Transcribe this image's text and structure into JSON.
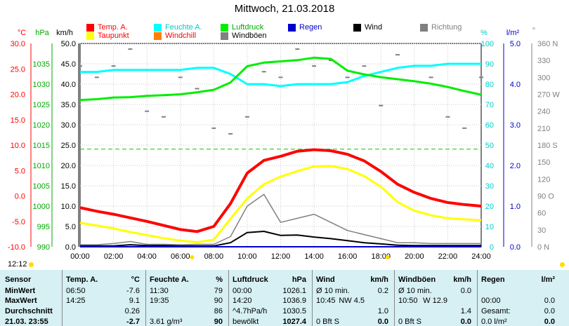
{
  "title": "Mittwoch, 21.03.2018",
  "legend": [
    {
      "label": "Temp. A.",
      "color": "#ff0000",
      "text_color": "#ff0000"
    },
    {
      "label": "Feuchte A.",
      "color": "#00ffff",
      "text_color": "#00cccc"
    },
    {
      "label": "Luftdruck",
      "color": "#00ee00",
      "text_color": "#00aa00"
    },
    {
      "label": "Regen",
      "color": "#0000cc",
      "text_color": "#0000cc"
    },
    {
      "label": "Wind",
      "color": "#000000",
      "text_color": "#000000"
    },
    {
      "label": "Richtung",
      "color": "#808080",
      "text_color": "#808080"
    },
    {
      "label": "Taupunkt",
      "color": "#ffff00",
      "text_color": "#ff0000"
    },
    {
      "label": "Windchill",
      "color": "#ff8000",
      "text_color": "#ff0000"
    },
    {
      "label": "Windböen",
      "color": "#808080",
      "text_color": "#000000"
    }
  ],
  "axis_units": {
    "temp": "°C",
    "pressure": "hPa",
    "wind": "km/h",
    "humidity": "%",
    "rain": "l/m²",
    "direction": "°"
  },
  "axes": {
    "temp_ticks": [
      "30.0",
      "25.0",
      "20.0",
      "15.0",
      "10.0",
      "5.0",
      "0.0",
      "-5.0",
      "-10.0"
    ],
    "pressure_ticks": [
      "1035",
      "1030",
      "1025",
      "1020",
      "1015",
      "1010",
      "1005",
      "1000",
      "995",
      "990"
    ],
    "wind_ticks": [
      "50.0",
      "45.0",
      "40.0",
      "35.0",
      "30.0",
      "25.0",
      "20.0",
      "15.0",
      "10.0",
      "5.0",
      "0.0"
    ],
    "humidity_ticks": [
      "100",
      "90",
      "80",
      "70",
      "60",
      "50",
      "40",
      "30",
      "20",
      "10",
      "0"
    ],
    "rain_ticks": [
      "5.0",
      "4.0",
      "3.0",
      "2.0",
      "1.0",
      "0.0"
    ],
    "direction_ticks": [
      "360 N",
      "330",
      "300",
      "270 W",
      "240",
      "210",
      "180 S",
      "150",
      "120",
      "90 O",
      "60",
      "30",
      "0 N"
    ],
    "time_ticks": [
      "00:00",
      "02:00",
      "04:00",
      "06:00",
      "08:00",
      "10:00",
      "12:00",
      "14:00",
      "16:00",
      "18:00",
      "20:00",
      "22:00",
      "24:00"
    ]
  },
  "chart_data": {
    "type": "line",
    "title": "Mittwoch, 21.03.2018",
    "xlabel": "",
    "x": [
      0,
      1,
      2,
      3,
      4,
      5,
      6,
      7,
      8,
      9,
      10,
      11,
      12,
      13,
      14,
      15,
      16,
      17,
      18,
      19,
      20,
      21,
      22,
      23,
      24
    ],
    "xlim": [
      0,
      24
    ],
    "series": [
      {
        "name": "Temp. A.",
        "axis": "temp",
        "ylim": [
          -10,
          30
        ],
        "values": [
          -2.3,
          -3.0,
          -3.6,
          -4.3,
          -5.0,
          -5.8,
          -6.6,
          -7.0,
          -6.0,
          -1.5,
          4.5,
          7.0,
          7.8,
          8.8,
          9.1,
          8.9,
          8.2,
          6.9,
          4.8,
          2.3,
          0.7,
          -0.5,
          -1.3,
          -1.7,
          -2.0
        ]
      },
      {
        "name": "Taupunkt",
        "axis": "temp",
        "ylim": [
          -10,
          30
        ],
        "values": [
          -5.3,
          -5.8,
          -6.4,
          -7.1,
          -7.7,
          -8.3,
          -8.8,
          -9.1,
          -8.6,
          -4.5,
          -0.5,
          2.3,
          3.8,
          4.9,
          5.8,
          5.9,
          5.3,
          3.9,
          1.8,
          -1.2,
          -2.9,
          -3.8,
          -4.4,
          -4.6,
          -4.8
        ]
      },
      {
        "name": "Feuchte A.",
        "axis": "humidity",
        "ylim": [
          0,
          100
        ],
        "values": [
          86,
          86,
          87,
          87,
          87,
          87,
          87,
          88,
          88,
          85,
          80,
          80,
          79,
          80,
          80,
          80,
          81,
          84,
          86,
          88,
          89,
          89,
          90,
          90,
          90
        ]
      },
      {
        "name": "Luftdruck",
        "axis": "pressure",
        "ylim": [
          990,
          1040
        ],
        "values": [
          1026.1,
          1026.3,
          1026.7,
          1026.8,
          1027.1,
          1027.3,
          1027.5,
          1028.0,
          1028.6,
          1030.4,
          1034.4,
          1035.3,
          1035.6,
          1035.9,
          1036.5,
          1036.2,
          1033.3,
          1032.4,
          1031.7,
          1031.2,
          1030.7,
          1030.1,
          1029.3,
          1028.3,
          1027.4
        ]
      },
      {
        "name": "Wind",
        "axis": "wind",
        "ylim": [
          0,
          50
        ],
        "values": [
          0.2,
          0.2,
          0.2,
          0.5,
          0.3,
          0.3,
          0.2,
          0.2,
          0.2,
          1.0,
          3.5,
          3.8,
          2.8,
          2.9,
          2.4,
          2.0,
          1.5,
          1.0,
          0.7,
          0.4,
          0.3,
          0.3,
          0.3,
          0.3,
          0.3
        ]
      },
      {
        "name": "Windböen",
        "axis": "wind",
        "ylim": [
          0,
          50
        ],
        "values": [
          0.5,
          0.5,
          0.8,
          1.3,
          0.6,
          0.6,
          0.5,
          0.6,
          0.6,
          2.5,
          10.0,
          12.9,
          6.0,
          7.0,
          8.0,
          6.0,
          4.0,
          3.0,
          2.0,
          1.0,
          1.0,
          0.8,
          0.8,
          0.8,
          0.8
        ]
      },
      {
        "name": "Regen",
        "axis": "rain",
        "ylim": [
          0,
          5
        ],
        "values": [
          0,
          0,
          0,
          0,
          0,
          0,
          0,
          0,
          0,
          0,
          0,
          0,
          0,
          0,
          0,
          0,
          0,
          0,
          0,
          0,
          0,
          0,
          0,
          0,
          0
        ]
      }
    ],
    "richtung_samples": [
      320,
      300,
      320,
      350,
      240,
      230,
      300,
      280,
      210,
      200,
      230,
      310,
      300,
      350,
      320,
      330,
      300,
      320,
      250,
      340,
      320,
      300,
      230,
      210,
      300
    ],
    "reference_line": {
      "axis": "humidity",
      "value": 48,
      "color": "#00cc00",
      "style": "dashed"
    },
    "grid": true
  },
  "status": {
    "time": "12:12"
  },
  "table": {
    "row_labels": [
      "Sensor",
      "MinWert",
      "MaxWert",
      "Durchschnitt",
      "21.03. 23:55"
    ],
    "temp": {
      "header": "Temp. A.",
      "unit": "°C",
      "rows": [
        [
          "06:50",
          "-7.6"
        ],
        [
          "14:25",
          "9.1"
        ],
        [
          "",
          "0.26"
        ],
        [
          "",
          "-2.7"
        ]
      ]
    },
    "humidity": {
      "header": "Feuchte A.",
      "unit": "%",
      "rows": [
        [
          "11:30",
          "79"
        ],
        [
          "19:35",
          "90"
        ],
        [
          "",
          "86"
        ],
        [
          "3.61 g/m³",
          "90"
        ]
      ]
    },
    "pressure": {
      "header": "Luftdruck",
      "unit": "hPa",
      "rows": [
        [
          "00:00",
          "1026.1"
        ],
        [
          "14:20",
          "1036.9"
        ],
        [
          "^4.7hPa/h",
          "1030.5"
        ],
        [
          "bewölkt",
          "1027.4"
        ]
      ]
    },
    "wind": {
      "header": "Wind",
      "unit": "km/h",
      "rows": [
        [
          "Ø 10 min.",
          "",
          "0.2"
        ],
        [
          "10:45",
          "NW 4.5",
          ""
        ],
        [
          "",
          "",
          "1.0"
        ],
        [
          "0 Bft S",
          "",
          "0.0"
        ]
      ]
    },
    "gust": {
      "header": "Windböen",
      "unit": "km/h",
      "rows": [
        [
          "Ø 10 min.",
          "",
          "0.0"
        ],
        [
          "10:50",
          "W 12.9",
          ""
        ],
        [
          "",
          "",
          "1.4"
        ],
        [
          "0 Bft S",
          "",
          "0.0"
        ]
      ]
    },
    "rain": {
      "header": "Regen",
      "unit": "l/m²",
      "rows": [
        [
          "",
          ""
        ],
        [
          "00:00",
          "0.0"
        ],
        [
          "Gesamt:",
          "0.0"
        ],
        [
          "0.0 l/m²",
          "0.0"
        ]
      ]
    }
  }
}
